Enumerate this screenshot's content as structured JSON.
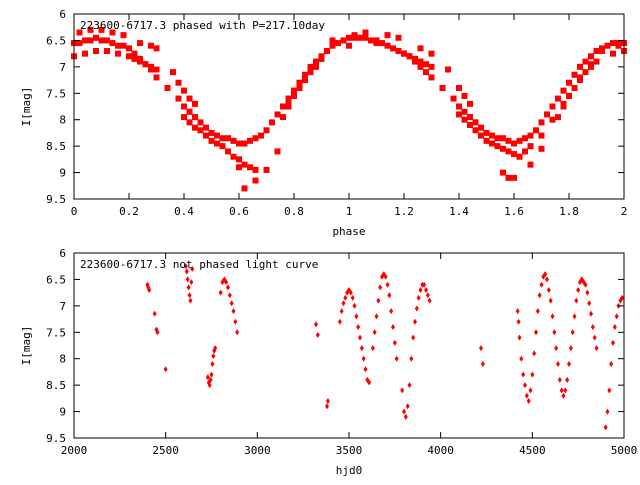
{
  "chart_data": [
    {
      "type": "scatter",
      "title": "223600-6717.3 phased with P=217.10day",
      "xlabel": "phase",
      "ylabel": "I[mag]",
      "xlim": [
        0,
        2
      ],
      "ylim": [
        9.5,
        6
      ],
      "y_inverted": true,
      "x_ticks": [
        0,
        0.2,
        0.4,
        0.6,
        0.8,
        1,
        1.2,
        1.4,
        1.6,
        1.8,
        2
      ],
      "x_tick_labels": [
        "0",
        "0.2",
        "0.4",
        "0.6",
        "0.8",
        "1",
        "1.2",
        "1.4",
        "1.6",
        "1.8",
        "2"
      ],
      "y_ticks": [
        6,
        6.5,
        7,
        7.5,
        8,
        8.5,
        9,
        9.5
      ],
      "y_tick_labels": [
        "6",
        "6.5",
        "7",
        "7.5",
        "8",
        "8.5",
        "9",
        "9.5"
      ],
      "marker": "square",
      "color": "#ff0000",
      "legend": "none",
      "grid": false,
      "series": [
        {
          "x": [
            0.0,
            0.02,
            0.04,
            0.06,
            0.08,
            0.1,
            0.12,
            0.14,
            0.16,
            0.18,
            0.2,
            0.22,
            0.24,
            0.26,
            0.28,
            0.3,
            0.34,
            0.38,
            0.4,
            0.42,
            0.44,
            0.46,
            0.48,
            0.5,
            0.52,
            0.54,
            0.56,
            0.58,
            0.6,
            0.62,
            0.64,
            0.66,
            0.68,
            0.7,
            0.72,
            0.74,
            0.76,
            0.78,
            0.8,
            0.82,
            0.84,
            0.86,
            0.88,
            0.9,
            0.92,
            0.94,
            0.96,
            0.98,
            1.0,
            1.02,
            1.04,
            1.06,
            1.08,
            1.1,
            1.12,
            1.14,
            1.16,
            1.18,
            1.2,
            1.22,
            1.24,
            1.26,
            1.28,
            1.3,
            1.34,
            1.38,
            1.4,
            1.42,
            1.44,
            1.46,
            1.48,
            1.5,
            1.52,
            1.54,
            1.56,
            1.58,
            1.6,
            1.62,
            1.64,
            1.66,
            1.68,
            1.7,
            1.72,
            1.74,
            1.76,
            1.78,
            1.8,
            1.82,
            1.84,
            1.86,
            1.88,
            1.9,
            1.92,
            1.94,
            1.96,
            1.98,
            2.0
          ],
          "y": [
            6.55,
            6.55,
            6.5,
            6.5,
            6.45,
            6.5,
            6.5,
            6.55,
            6.6,
            6.6,
            6.65,
            6.75,
            6.85,
            6.95,
            7.05,
            7.2,
            7.4,
            7.6,
            7.75,
            7.85,
            7.95,
            8.05,
            8.15,
            8.25,
            8.3,
            8.35,
            8.35,
            8.4,
            8.45,
            8.45,
            8.4,
            8.35,
            8.3,
            8.2,
            8.05,
            7.9,
            7.75,
            7.6,
            7.45,
            7.3,
            7.15,
            7.0,
            6.9,
            6.8,
            6.7,
            6.6,
            6.55,
            6.5,
            6.45,
            6.45,
            6.45,
            6.45,
            6.5,
            6.5,
            6.55,
            6.6,
            6.65,
            6.7,
            6.75,
            6.8,
            6.9,
            7.0,
            7.1,
            7.2,
            7.4,
            7.6,
            7.75,
            7.85,
            7.95,
            8.05,
            8.15,
            8.25,
            8.3,
            8.35,
            8.35,
            8.4,
            8.45,
            8.4,
            8.35,
            8.3,
            8.2,
            8.05,
            7.9,
            7.75,
            7.6,
            7.45,
            7.3,
            7.15,
            7.0,
            6.9,
            6.8,
            6.7,
            6.65,
            6.6,
            6.55,
            6.55,
            6.55
          ]
        },
        {
          "x": [
            0.0,
            0.04,
            0.08,
            0.12,
            0.16,
            0.2,
            0.22,
            0.24,
            0.26,
            0.28,
            0.3,
            0.4,
            0.42,
            0.44,
            0.46,
            0.48,
            0.5,
            0.52,
            0.54,
            0.56,
            0.58,
            0.6,
            0.62,
            0.64,
            0.66,
            0.7,
            0.74,
            0.78,
            0.8,
            0.82,
            0.84,
            0.86,
            0.88,
            0.9,
            1.0,
            1.1,
            1.2,
            1.22,
            1.24,
            1.26,
            1.28,
            1.3,
            1.4,
            1.42,
            1.44,
            1.46,
            1.48,
            1.5,
            1.52,
            1.54,
            1.56,
            1.58,
            1.6,
            1.62,
            1.64,
            1.66,
            1.7,
            1.74,
            1.78,
            1.8,
            1.82,
            1.84,
            1.86,
            1.88,
            1.9,
            1.96,
            2.0
          ],
          "y": [
            6.8,
            6.75,
            6.7,
            6.7,
            6.75,
            6.8,
            6.85,
            6.9,
            6.95,
            7.0,
            7.05,
            7.95,
            8.05,
            8.15,
            8.2,
            8.3,
            8.4,
            8.45,
            8.5,
            8.6,
            8.7,
            8.75,
            8.85,
            8.9,
            8.95,
            8.95,
            8.6,
            7.7,
            7.55,
            7.4,
            7.25,
            7.1,
            7.0,
            6.85,
            6.6,
            6.55,
            6.75,
            6.8,
            6.85,
            6.9,
            6.95,
            7.0,
            7.9,
            8.0,
            8.1,
            8.2,
            8.3,
            8.4,
            8.45,
            8.5,
            8.55,
            8.6,
            8.65,
            8.7,
            8.6,
            8.5,
            8.3,
            8.0,
            7.7,
            7.55,
            7.4,
            7.25,
            7.1,
            7.0,
            6.9,
            6.75,
            6.7
          ]
        },
        {
          "x": [
            0.02,
            0.06,
            0.1,
            0.14,
            0.18,
            0.24,
            0.28,
            0.3,
            0.36,
            0.38,
            0.4,
            0.42,
            0.44,
            0.52,
            0.6,
            0.62,
            0.66,
            0.7,
            0.76,
            0.78,
            0.8,
            0.82,
            0.84,
            0.88,
            0.94,
            1.02,
            1.06,
            1.14,
            1.18,
            1.26,
            1.3,
            1.36,
            1.4,
            1.42,
            1.44,
            1.56,
            1.58,
            1.6,
            1.66,
            1.7,
            1.76,
            1.78,
            1.8,
            1.84,
            1.88,
            1.92,
            1.98
          ],
          "y": [
            6.35,
            6.3,
            6.3,
            6.35,
            6.4,
            6.55,
            6.6,
            6.65,
            7.1,
            7.3,
            7.45,
            7.6,
            7.7,
            8.45,
            8.9,
            9.3,
            9.15,
            8.95,
            7.95,
            7.75,
            7.55,
            7.4,
            7.2,
            6.95,
            6.5,
            6.4,
            6.35,
            6.4,
            6.45,
            6.65,
            6.75,
            7.05,
            7.4,
            7.55,
            7.7,
            9.0,
            9.1,
            9.1,
            8.85,
            8.55,
            7.95,
            7.75,
            7.55,
            7.2,
            6.95,
            6.7,
            6.6
          ]
        }
      ]
    },
    {
      "type": "scatter",
      "title": "223600-6717.3 not phased light curve",
      "xlabel": "hjd0",
      "ylabel": "I[mag]",
      "xlim": [
        2000,
        5000
      ],
      "ylim": [
        9.5,
        6
      ],
      "y_inverted": true,
      "x_ticks": [
        2000,
        2500,
        3000,
        3500,
        4000,
        4500,
        5000
      ],
      "x_tick_labels": [
        "2000",
        "2500",
        "3000",
        "3500",
        "4000",
        "4500",
        "5000"
      ],
      "y_ticks": [
        6,
        6.5,
        7,
        7.5,
        8,
        8.5,
        9,
        9.5
      ],
      "y_tick_labels": [
        "6",
        "6.5",
        "7",
        "7.5",
        "8",
        "8.5",
        "9",
        "9.5"
      ],
      "marker": "diamond",
      "color": "#ff0000",
      "legend": "none",
      "grid": false,
      "series": [
        {
          "x": [
            2400,
            2405,
            2410,
            2440,
            2450,
            2455,
            2500,
            2610,
            2615,
            2620,
            2625,
            2630,
            2635,
            2640,
            2645,
            2730,
            2735,
            2740,
            2745,
            2750,
            2755,
            2760,
            2765,
            2770,
            2800,
            2810,
            2820,
            2830,
            2840,
            2850,
            2860,
            2870,
            2880,
            2890,
            3320,
            3330,
            3380,
            3385,
            3450,
            3460,
            3470,
            3480,
            3490,
            3500,
            3510,
            3520,
            3530,
            3540,
            3550,
            3560,
            3570,
            3580,
            3590,
            3600,
            3610,
            3630,
            3640,
            3650,
            3660,
            3670,
            3680,
            3690,
            3700,
            3710,
            3720,
            3730,
            3740,
            3750,
            3760,
            3790,
            3800,
            3810,
            3820,
            3830,
            3840,
            3850,
            3860,
            3870,
            3880,
            3890,
            3900,
            3910,
            3920,
            3930,
            3940,
            4220,
            4230,
            4420,
            4425,
            4430,
            4440,
            4450,
            4460,
            4470,
            4480,
            4490,
            4500,
            4510,
            4520,
            4530,
            4540,
            4550,
            4560,
            4570,
            4580,
            4590,
            4600,
            4610,
            4620,
            4630,
            4640,
            4650,
            4660,
            4670,
            4680,
            4690,
            4700,
            4710,
            4720,
            4730,
            4740,
            4750,
            4760,
            4770,
            4780,
            4790,
            4800,
            4810,
            4820,
            4830,
            4840,
            4850,
            4900,
            4910,
            4920,
            4930,
            4940,
            4950,
            4960,
            4970,
            4980,
            4990
          ],
          "y": [
            6.6,
            6.65,
            6.7,
            7.15,
            7.45,
            7.5,
            8.2,
            6.25,
            6.35,
            6.5,
            6.65,
            6.8,
            6.9,
            6.55,
            6.3,
            8.35,
            8.45,
            8.5,
            8.4,
            8.3,
            8.1,
            7.95,
            7.85,
            7.8,
            6.75,
            6.55,
            6.5,
            6.55,
            6.65,
            6.8,
            6.95,
            7.1,
            7.3,
            7.5,
            7.35,
            7.55,
            8.9,
            8.8,
            7.3,
            7.1,
            6.95,
            6.85,
            6.75,
            6.7,
            6.75,
            6.85,
            7.0,
            7.2,
            7.4,
            7.6,
            7.8,
            8.0,
            8.2,
            8.4,
            8.45,
            7.8,
            7.5,
            7.2,
            6.9,
            6.65,
            6.45,
            6.4,
            6.45,
            6.6,
            6.8,
            7.1,
            7.4,
            7.7,
            8.0,
            8.6,
            9.0,
            9.1,
            8.9,
            8.5,
            8.0,
            7.6,
            7.3,
            7.05,
            6.85,
            6.7,
            6.6,
            6.6,
            6.7,
            6.8,
            6.9,
            7.8,
            8.1,
            7.1,
            7.3,
            7.6,
            8.0,
            8.3,
            8.5,
            8.7,
            8.8,
            8.6,
            8.3,
            7.9,
            7.5,
            7.1,
            6.8,
            6.6,
            6.45,
            6.4,
            6.5,
            6.7,
            6.9,
            7.2,
            7.5,
            7.8,
            8.1,
            8.4,
            8.6,
            8.7,
            8.6,
            8.4,
            8.1,
            7.8,
            7.5,
            7.2,
            6.9,
            6.7,
            6.55,
            6.5,
            6.55,
            6.6,
            6.75,
            6.95,
            7.15,
            7.4,
            7.6,
            7.8,
            9.3,
            9.0,
            8.6,
            8.1,
            7.7,
            7.4,
            7.2,
            7.0,
            6.9,
            6.85
          ]
        }
      ]
    }
  ]
}
